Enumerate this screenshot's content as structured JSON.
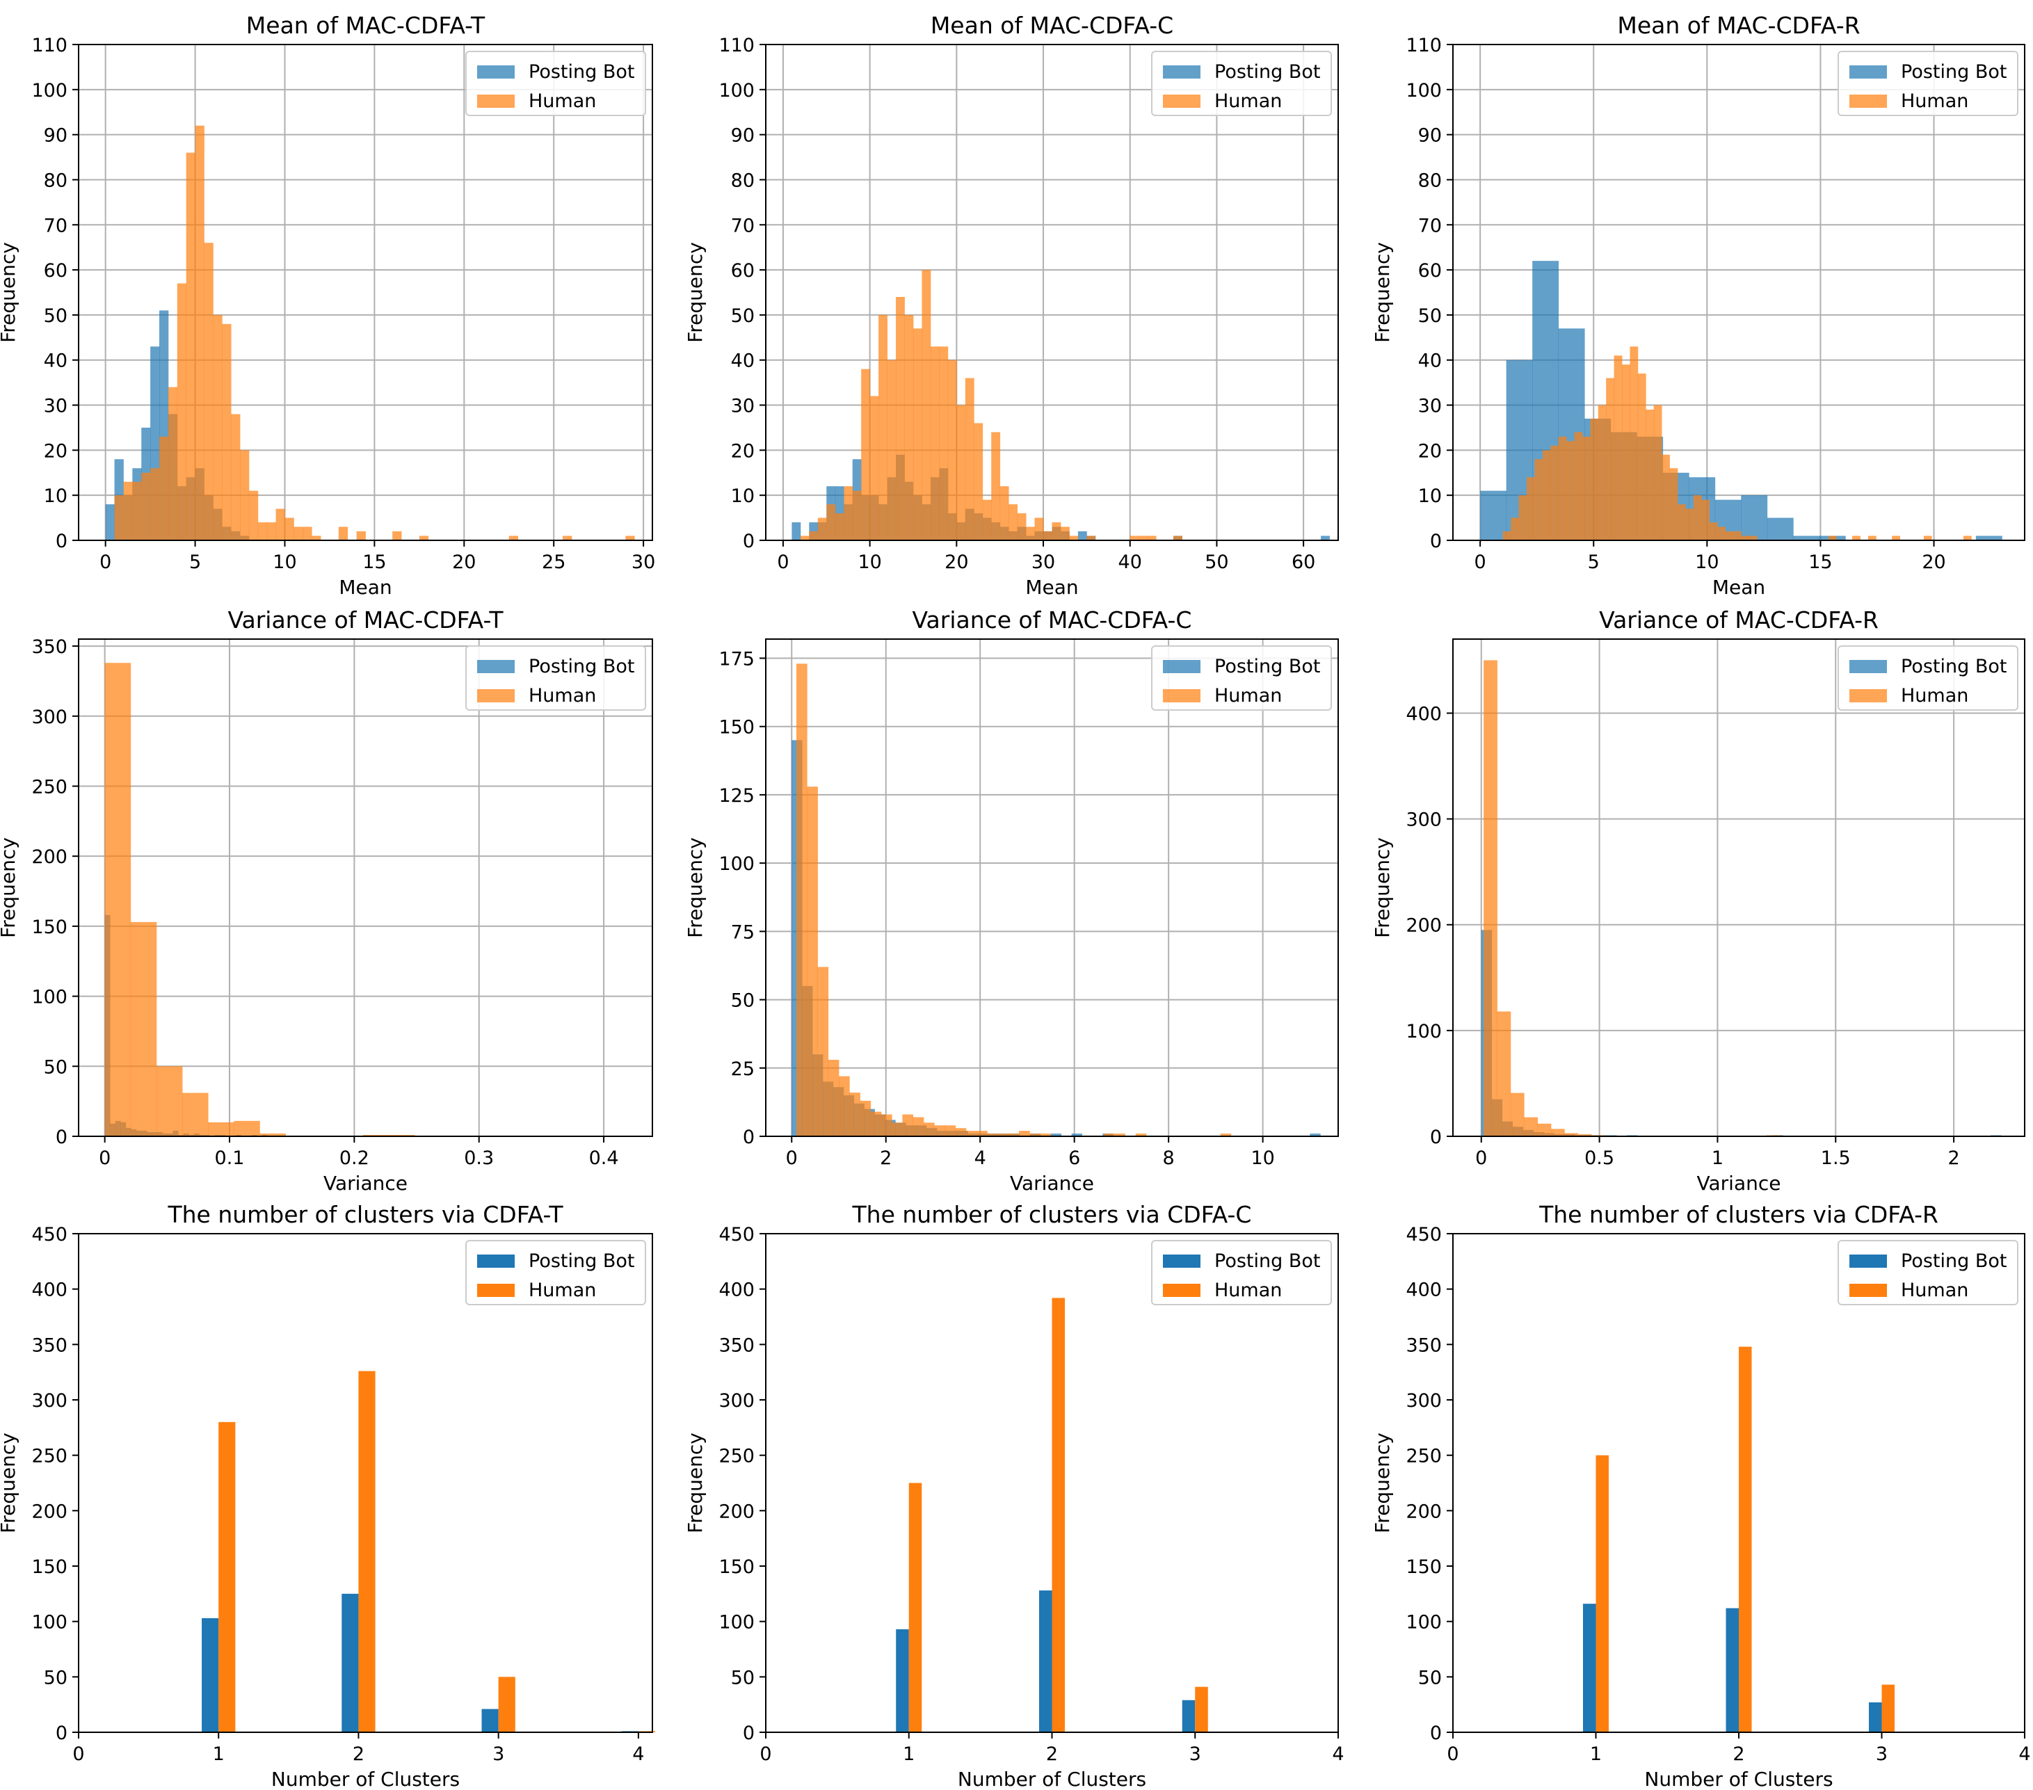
{
  "colors": {
    "bot": "#1f77b4",
    "human": "#ff7f0e",
    "grid": "#b0b0b0",
    "axis": "#000000"
  },
  "chart_data": [
    {
      "type": "bar",
      "title": "Mean of MAC-CDFA-T",
      "xlabel": "Mean",
      "ylabel": "Frequency",
      "xlim": [
        -1.5,
        30.5
      ],
      "ylim": [
        0,
        110
      ],
      "xticks": [
        0,
        5,
        10,
        15,
        20,
        25,
        30
      ],
      "yticks": [
        0,
        10,
        20,
        30,
        40,
        50,
        60,
        70,
        80,
        90,
        100,
        110
      ],
      "grid": true,
      "legend": "top-right",
      "alpha": 0.7,
      "series": [
        {
          "name": "Posting Bot",
          "bin_start": 0,
          "bin_width": 0.5,
          "values": [
            8,
            18,
            10,
            16,
            25,
            43,
            51,
            28,
            12,
            14,
            16,
            10,
            7,
            3,
            2,
            1
          ]
        },
        {
          "name": "Human",
          "bin_start": 0.5,
          "bin_width": 0.5,
          "values": [
            10,
            13,
            13,
            15,
            16,
            23,
            34,
            57,
            86,
            92,
            66,
            50,
            48,
            28,
            20,
            11,
            4,
            4,
            7,
            5,
            3,
            3,
            1,
            0,
            0,
            3,
            0,
            2,
            0,
            0,
            0,
            2,
            0,
            0,
            1,
            0,
            0,
            0,
            0,
            0,
            0,
            0,
            0,
            0,
            1,
            0,
            0,
            0,
            0,
            0,
            1,
            0,
            0,
            0,
            0,
            0,
            0,
            1
          ]
        }
      ]
    },
    {
      "type": "bar",
      "title": "Mean of MAC-CDFA-C",
      "xlabel": "Mean",
      "ylabel": "Frequency",
      "xlim": [
        -2,
        64
      ],
      "ylim": [
        0,
        110
      ],
      "xticks": [
        0,
        10,
        20,
        30,
        40,
        50,
        60
      ],
      "yticks": [
        0,
        10,
        20,
        30,
        40,
        50,
        60,
        70,
        80,
        90,
        100,
        110
      ],
      "grid": true,
      "legend": "top-right",
      "alpha": 0.7,
      "series": [
        {
          "name": "Posting Bot",
          "bin_start": 1,
          "bin_width": 1,
          "values": [
            4,
            0,
            4,
            4,
            12,
            12,
            8,
            18,
            10,
            10,
            8,
            14,
            19,
            13,
            10,
            8,
            14,
            16,
            6,
            4,
            7,
            6,
            5,
            4,
            3,
            2,
            3,
            1,
            2,
            2,
            3,
            2,
            0,
            2,
            1,
            0,
            0,
            0,
            0,
            0,
            0,
            0,
            0,
            0,
            1,
            0,
            0,
            0,
            0,
            0,
            0,
            0,
            0,
            0,
            0,
            0,
            0,
            0,
            0,
            0,
            0,
            1
          ]
        },
        {
          "name": "Human",
          "bin_start": 2,
          "bin_width": 1,
          "values": [
            1,
            2,
            5,
            8,
            6,
            12,
            11,
            38,
            32,
            50,
            40,
            54,
            50,
            47,
            60,
            43,
            43,
            40,
            30,
            36,
            26,
            9,
            24,
            12,
            8,
            6,
            3,
            5,
            2,
            4,
            3,
            1,
            0,
            1,
            0,
            0,
            0,
            0,
            1,
            1,
            1,
            0,
            0,
            1
          ]
        }
      ]
    },
    {
      "type": "bar",
      "title": "Mean of MAC-CDFA-R",
      "xlabel": "Mean",
      "ylabel": "Frequency",
      "xlim": [
        -1.2,
        24
      ],
      "ylim": [
        0,
        110
      ],
      "xticks": [
        0,
        5,
        10,
        15,
        20
      ],
      "yticks": [
        0,
        10,
        20,
        30,
        40,
        50,
        60,
        70,
        80,
        90,
        100,
        110
      ],
      "grid": true,
      "legend": "top-right",
      "alpha": 0.7,
      "series": [
        {
          "name": "Posting Bot",
          "bin_start": 0,
          "bin_width": 1.15,
          "values": [
            11,
            40,
            62,
            47,
            27,
            24,
            23,
            15,
            14,
            9,
            10,
            5,
            1,
            1,
            0,
            0,
            0,
            0,
            0,
            1
          ]
        },
        {
          "name": "Human",
          "bin_start": 1,
          "bin_width": 0.35,
          "values": [
            2,
            5,
            10,
            14,
            18,
            20,
            21,
            23,
            22,
            24,
            23,
            27,
            30,
            36,
            41,
            39,
            43,
            37,
            29,
            30,
            19,
            16,
            8,
            7,
            10,
            9,
            4,
            3,
            2,
            2,
            1,
            1,
            0,
            0,
            0,
            0,
            0,
            0,
            0,
            0,
            0,
            1,
            0,
            0,
            1,
            0,
            1,
            0,
            0,
            1,
            0,
            0,
            0,
            1,
            0,
            0,
            0,
            0,
            1
          ]
        }
      ]
    },
    {
      "type": "bar",
      "title": "Variance of MAC-CDFA-T",
      "xlabel": "Variance",
      "ylabel": "Frequency",
      "xlim": [
        -0.021,
        0.439
      ],
      "ylim": [
        0,
        355
      ],
      "xticks": [
        0.0,
        0.1,
        0.2,
        0.3,
        0.4
      ],
      "ytickvalues": [
        0,
        50,
        100,
        150,
        200,
        250,
        300,
        350
      ],
      "yticklabels": [
        "0",
        "50",
        "100",
        "150",
        "200",
        "250",
        "300",
        "350"
      ],
      "grid": true,
      "legend": "top-right",
      "alpha": 0.7,
      "series": [
        {
          "name": "Posting Bot",
          "bin_start": 0,
          "bin_width": 0.0042,
          "values": [
            158,
            9,
            11,
            10,
            6,
            5,
            4,
            4,
            3,
            3,
            3,
            2,
            2,
            4,
            1,
            2,
            1,
            2,
            1,
            1,
            0,
            1,
            1,
            0,
            0,
            1,
            0,
            0,
            1,
            0,
            1
          ]
        },
        {
          "name": "Human",
          "bin_start": 0,
          "bin_width": 0.0207,
          "values": [
            338,
            153,
            50,
            31,
            10,
            11,
            2,
            0,
            0,
            0,
            1,
            1,
            0,
            0,
            0,
            0,
            0,
            0,
            0,
            0
          ]
        }
      ]
    },
    {
      "type": "bar",
      "title": "Variance of MAC-CDFA-C",
      "xlabel": "Variance",
      "ylabel": "Frequency",
      "xlim": [
        -0.55,
        11.6
      ],
      "ylim": [
        0,
        182
      ],
      "xticks": [
        0,
        2,
        4,
        6,
        8,
        10
      ],
      "ytickvalues": [
        0,
        25,
        50,
        75,
        100,
        125,
        150,
        175
      ],
      "yticklabels": [
        "0",
        "25",
        "50",
        "75",
        "100",
        "125",
        "150",
        "175"
      ],
      "grid": true,
      "legend": "top-right",
      "alpha": 0.7,
      "series": [
        {
          "name": "Posting Bot",
          "bin_start": 0,
          "bin_width": 0.22,
          "values": [
            145,
            55,
            30,
            20,
            18,
            15,
            12,
            10,
            8,
            6,
            5,
            4,
            4,
            3,
            2,
            2,
            2,
            1,
            1,
            1,
            1,
            1,
            0,
            1,
            0,
            1,
            0,
            1,
            0,
            0,
            1,
            0,
            0,
            0,
            0,
            0,
            0,
            0,
            0,
            0,
            0,
            0,
            0,
            0,
            0,
            0,
            0,
            0,
            0,
            0,
            1
          ]
        },
        {
          "name": "Human",
          "bin_start": 0.1,
          "bin_width": 0.225,
          "values": [
            173,
            128,
            62,
            28,
            22,
            16,
            13,
            9,
            8,
            5,
            8,
            7,
            5,
            4,
            4,
            3,
            2,
            2,
            1,
            1,
            1,
            2,
            1,
            1,
            0,
            0,
            0,
            0,
            0,
            1,
            1,
            0,
            1,
            0,
            0,
            0,
            0,
            0,
            0,
            0,
            1
          ]
        }
      ]
    },
    {
      "type": "bar",
      "title": "Variance of MAC-CDFA-R",
      "xlabel": "Variance",
      "ylabel": "Frequency",
      "xlim": [
        -0.12,
        2.3
      ],
      "ylim": [
        0,
        470
      ],
      "xticks": [
        0.0,
        0.5,
        1.0,
        1.5,
        2.0
      ],
      "ytickvalues": [
        0,
        100,
        200,
        300,
        400
      ],
      "yticklabels": [
        "0",
        "100",
        "200",
        "300",
        "400"
      ],
      "grid": true,
      "legend": "top-right",
      "alpha": 0.7,
      "series": [
        {
          "name": "Posting Bot",
          "bin_start": 0,
          "bin_width": 0.044,
          "values": [
            195,
            35,
            14,
            9,
            6,
            4,
            3,
            2,
            2,
            1,
            1,
            1,
            1,
            0,
            1,
            0,
            0,
            0,
            0,
            0,
            0,
            0,
            0,
            0,
            0,
            0,
            0,
            0,
            1,
            0,
            0,
            0,
            0,
            0,
            0,
            0,
            0,
            0,
            0,
            0,
            0,
            0,
            0,
            0,
            0,
            0,
            0,
            0,
            0,
            1
          ]
        },
        {
          "name": "Human",
          "bin_start": 0.01,
          "bin_width": 0.057,
          "values": [
            450,
            118,
            41,
            18,
            12,
            7,
            3,
            2,
            1,
            0,
            0,
            0,
            0,
            0,
            0,
            0,
            0,
            0,
            0,
            0,
            0,
            1
          ]
        }
      ]
    },
    {
      "type": "bar",
      "title": "The number of clusters via CDFA-T",
      "xlabel": "Number of Clusters",
      "ylabel": "Frequency",
      "xlim": [
        0,
        4.1
      ],
      "ylim": [
        0,
        450
      ],
      "xticks": [
        0,
        1,
        2,
        3,
        4
      ],
      "yticks": [
        0,
        50,
        100,
        150,
        200,
        250,
        300,
        350,
        400,
        450
      ],
      "grid": false,
      "legend": "top-right",
      "bar_width": 0.12,
      "categories": [
        1,
        2,
        3,
        4
      ],
      "series": [
        {
          "name": "Posting Bot",
          "values": [
            103,
            125,
            21,
            1
          ]
        },
        {
          "name": "Human",
          "values": [
            280,
            326,
            50,
            1
          ]
        }
      ]
    },
    {
      "type": "bar",
      "title": "The number of clusters via CDFA-C",
      "xlabel": "Number of Clusters",
      "ylabel": "Frequency",
      "xlim": [
        0,
        4
      ],
      "ylim": [
        0,
        450
      ],
      "xticks": [
        0,
        1,
        2,
        3,
        4
      ],
      "yticks": [
        0,
        50,
        100,
        150,
        200,
        250,
        300,
        350,
        400,
        450
      ],
      "grid": false,
      "legend": "top-right",
      "bar_width": 0.09,
      "categories": [
        1,
        2,
        3
      ],
      "series": [
        {
          "name": "Posting Bot",
          "values": [
            93,
            128,
            29
          ]
        },
        {
          "name": "Human",
          "values": [
            225,
            392,
            41
          ]
        }
      ]
    },
    {
      "type": "bar",
      "title": "The number of clusters via CDFA-R",
      "xlabel": "Number of Clusters",
      "ylabel": "Frequency",
      "xlim": [
        0,
        4
      ],
      "ylim": [
        0,
        450
      ],
      "xticks": [
        0,
        1,
        2,
        3,
        4
      ],
      "yticks": [
        0,
        50,
        100,
        150,
        200,
        250,
        300,
        350,
        400,
        450
      ],
      "grid": false,
      "legend": "top-right",
      "bar_width": 0.09,
      "categories": [
        1,
        2,
        3
      ],
      "series": [
        {
          "name": "Posting Bot",
          "values": [
            116,
            112,
            27
          ]
        },
        {
          "name": "Human",
          "values": [
            250,
            348,
            43
          ]
        }
      ]
    }
  ]
}
